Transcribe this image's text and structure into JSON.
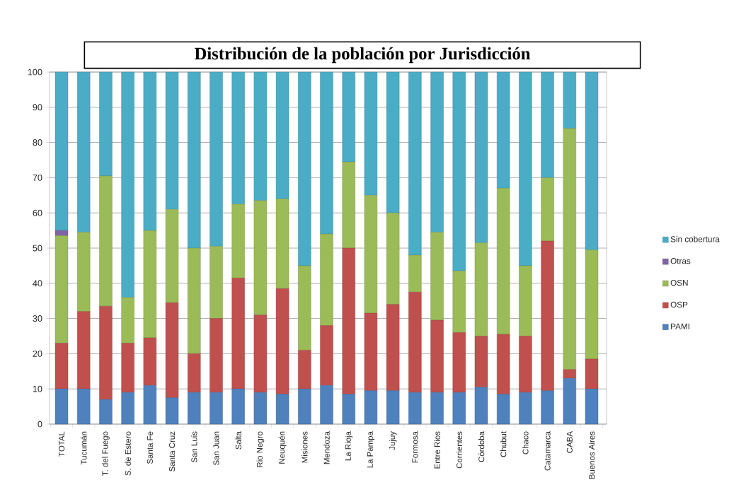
{
  "chart_data": {
    "type": "bar",
    "title": "Distribución de la población por Jurisdicción",
    "categories": [
      "TOTAL",
      "Tucumán",
      "T. del Fuego",
      "S. de Estero",
      "Santa Fe",
      "Santa Cruz",
      "San Luis",
      "San Juan",
      "Salta",
      "Rio Negro",
      "Neuquén",
      "Misiones",
      "Mendoza",
      "La Rioja",
      "La Pampa",
      "Jujuy",
      "Formosa",
      "Entre Rios",
      "Corrientes",
      "Córdoba",
      "Chubut",
      "Chaco",
      "Catamarca",
      "CABA",
      "Buenos Aires"
    ],
    "series": [
      {
        "name": "PAMI",
        "color": "#4f81bd",
        "values": [
          10,
          10,
          7,
          9,
          11,
          7.5,
          9,
          9,
          10,
          9,
          8.5,
          10,
          11,
          8.5,
          9.5,
          9.5,
          9,
          9,
          9,
          10.5,
          8.5,
          9,
          9.5,
          13,
          10
        ]
      },
      {
        "name": "OSP",
        "color": "#c0504d",
        "values": [
          13,
          22,
          26.5,
          14,
          13.5,
          27,
          11,
          21,
          31.5,
          22,
          30,
          11,
          17,
          41.5,
          22,
          24.5,
          28.5,
          20.5,
          17,
          14.5,
          17,
          16,
          42.5,
          2.5,
          8.5
        ]
      },
      {
        "name": "OSN",
        "color": "#9bbb59",
        "values": [
          30.5,
          22.5,
          37,
          13,
          30.5,
          26.5,
          30,
          20.5,
          21,
          32.5,
          25.5,
          24,
          26,
          24.5,
          33.5,
          26,
          10.5,
          25,
          17.5,
          26.5,
          41.5,
          20,
          18,
          68.5,
          31
        ]
      },
      {
        "name": "Otras",
        "color": "#8064a2",
        "values": [
          1.5,
          null,
          null,
          null,
          null,
          null,
          null,
          null,
          null,
          null,
          null,
          null,
          null,
          null,
          null,
          null,
          null,
          null,
          null,
          null,
          null,
          null,
          null,
          null,
          null
        ]
      },
      {
        "name": "Sin cobertura",
        "color": "#4bacc6",
        "values": [
          45,
          45.5,
          29.5,
          64,
          45,
          39,
          50,
          49.5,
          37.5,
          36.5,
          36,
          55,
          46,
          25.5,
          35,
          40,
          52,
          45.5,
          56.5,
          48.5,
          33,
          55,
          30,
          16,
          50.5
        ]
      }
    ],
    "stacked": true,
    "ylim": [
      0,
      100
    ],
    "yticks": [
      0,
      10,
      20,
      30,
      40,
      50,
      60,
      70,
      80,
      90,
      100
    ],
    "grid": "y",
    "legend": "right"
  }
}
